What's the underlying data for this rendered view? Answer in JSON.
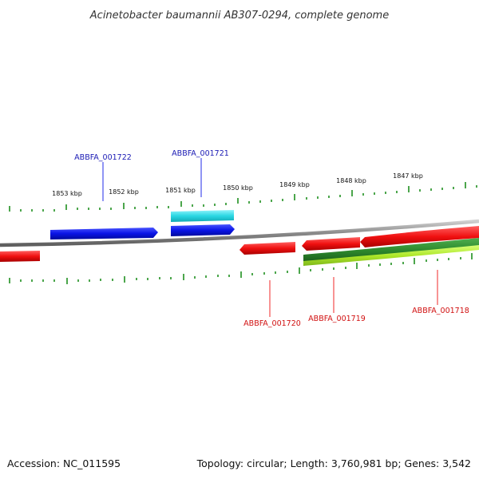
{
  "title": "Acinetobacter baumannii AB307-0294, complete genome",
  "footer": {
    "accession": "Accession: NC_011595",
    "summary": "Topology: circular; Length: 3,760,981 bp; Genes: 3,542"
  },
  "colors": {
    "forward_strand_cds": "#0a14e6",
    "forward_strand_other": "#2ad7e3",
    "reverse_strand_cds": "#f01010",
    "reverse_strand_other": "#2e8b2e",
    "reverse_strand_other_2": "#aee82a",
    "scale_ticks": "#1f8f1f",
    "backbone": "#8a8a8a"
  },
  "kbp_ticks": [
    "1853 kbp",
    "1852 kbp",
    "1851 kbp",
    "1850 kbp",
    "1849 kbp",
    "1848 kbp",
    "1847 kbp"
  ],
  "gene_labels": {
    "forward": [
      "ABBFA_001722",
      "ABBFA_001721"
    ],
    "reverse": [
      "ABBFA_001720",
      "ABBFA_001719",
      "ABBFA_001718"
    ]
  }
}
